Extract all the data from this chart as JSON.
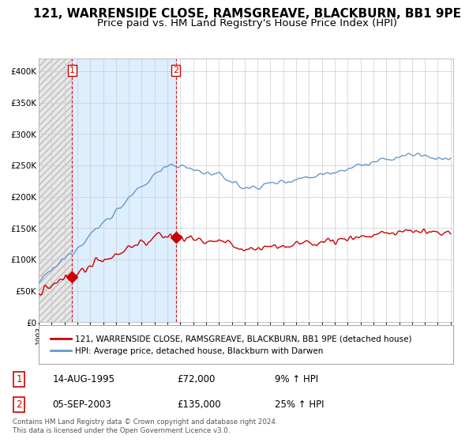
{
  "title": "121, WARRENSIDE CLOSE, RAMSGREAVE, BLACKBURN, BB1 9PE",
  "subtitle": "Price paid vs. HM Land Registry's House Price Index (HPI)",
  "ylim": [
    0,
    420000
  ],
  "yticks": [
    0,
    50000,
    100000,
    150000,
    200000,
    250000,
    300000,
    350000,
    400000
  ],
  "ytick_labels": [
    "£0",
    "£50K",
    "£100K",
    "£150K",
    "£200K",
    "£250K",
    "£300K",
    "£350K",
    "£400K"
  ],
  "sale1_year": 1995,
  "sale1_month": 8,
  "sale1_price": 72000,
  "sale2_year": 2003,
  "sale2_month": 9,
  "sale2_price": 135000,
  "hpi_color": "#6699cc",
  "price_color": "#cc0000",
  "hatch_color": "#cccccc",
  "shade_color": "#ddeeff",
  "legend_line1": "121, WARRENSIDE CLOSE, RAMSGREAVE, BLACKBURN, BB1 9PE (detached house)",
  "legend_line2": "HPI: Average price, detached house, Blackburn with Darwen",
  "table_row1": [
    "1",
    "14-AUG-1995",
    "£72,000",
    "9% ↑ HPI"
  ],
  "table_row2": [
    "2",
    "05-SEP-2003",
    "£135,000",
    "25% ↑ HPI"
  ],
  "footnote": "Contains HM Land Registry data © Crown copyright and database right 2024.\nThis data is licensed under the Open Government Licence v3.0.",
  "title_fontsize": 11,
  "subtitle_fontsize": 9.5
}
